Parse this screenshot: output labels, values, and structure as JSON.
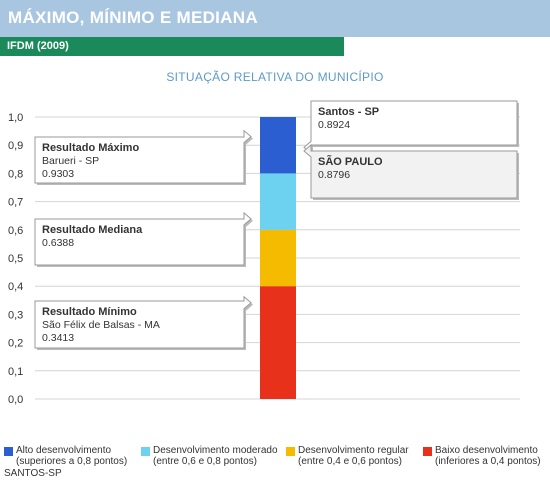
{
  "header": {
    "title": "MÁXIMO, MÍNIMO E MEDIANA",
    "subtitle": "IFDM (2009)"
  },
  "colors": {
    "header_bg": "#a9c6e0",
    "subheader_bg": "#1a8a5a",
    "alto": "#2b5fd1",
    "moderado": "#6dd2f0",
    "regular": "#f5bb00",
    "baixo": "#e8311b"
  },
  "chart_data": {
    "type": "bar",
    "title": "SITUAÇÃO RELATIVA DO MUNICÍPIO",
    "ylim": [
      0,
      1
    ],
    "y_ticks": [
      "0,0",
      "0,1",
      "0,2",
      "0,3",
      "0,4",
      "0,5",
      "0,6",
      "0,7",
      "0,8",
      "0,9",
      "1,0"
    ],
    "grid": true,
    "segments": [
      {
        "name": "Baixo desenvolvimento",
        "from": 0.0,
        "to": 0.4,
        "color": "#e8311b"
      },
      {
        "name": "Desenvolvimento regular",
        "from": 0.4,
        "to": 0.6,
        "color": "#f5bb00"
      },
      {
        "name": "Desenvolvimento moderado",
        "from": 0.6,
        "to": 0.8,
        "color": "#6dd2f0"
      },
      {
        "name": "Alto desenvolvimento",
        "from": 0.8,
        "to": 1.0,
        "color": "#2b5fd1"
      }
    ],
    "callouts": {
      "maximo": {
        "title": "Resultado Máximo",
        "name": "Barueri - SP",
        "value": 0.9303,
        "value_text": "0.9303"
      },
      "mediana": {
        "title": "Resultado Mediana",
        "value": 0.6388,
        "value_text": "0.6388"
      },
      "minimo": {
        "title": "Resultado Mínimo",
        "name": "São Félix de Balsas - MA",
        "value": 0.3413,
        "value_text": "0.3413"
      },
      "municipio": {
        "name": "Santos - SP",
        "value": 0.8924,
        "value_text": "0.8924"
      },
      "estado": {
        "name": "SÃO PAULO",
        "value": 0.8796,
        "value_text": "0.8796"
      }
    }
  },
  "legend": {
    "items": [
      {
        "label": "Alto desenvolvimento",
        "sub": "(superiores a 0,8 pontos)",
        "color": "#2b5fd1"
      },
      {
        "label": "Desenvolvimento moderado",
        "sub": "(entre 0,6 e 0,8 pontos)",
        "color": "#6dd2f0"
      },
      {
        "label": "Desenvolvimento regular",
        "sub": "(entre 0,4 e 0,6 pontos)",
        "color": "#f5bb00"
      },
      {
        "label": "Baixo desenvolvimento",
        "sub": "(inferiores a 0,4 pontos)",
        "color": "#e8311b"
      }
    ],
    "extra": "SANTOS-SP"
  }
}
